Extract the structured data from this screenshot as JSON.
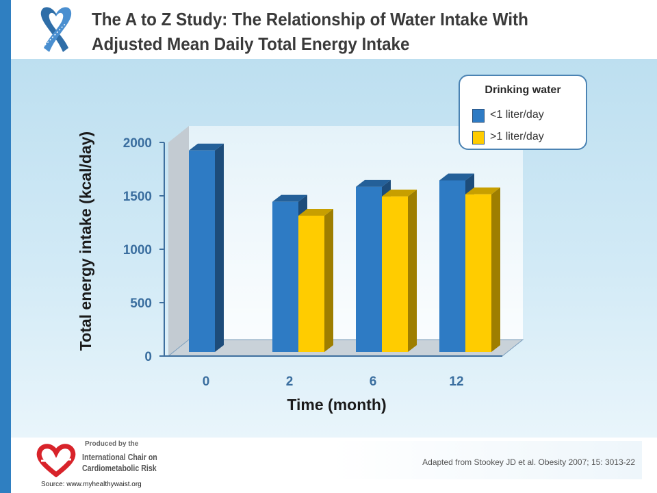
{
  "slide": {
    "title": "The A to Z Study: The Relationship of Water Intake With\nAdjusted Mean Daily Total Energy Intake",
    "reference": "Adapted from Stookey JD et al. Obesity 2007; 15: 3013-22",
    "source": "Source: www.myhealthywaist.org",
    "logo": {
      "produced": "Produced by the",
      "line1": "International Chair on",
      "line2": "Cardiometabolic Risk",
      "icon": "heart-logo-icon"
    },
    "ribbon_icon": "ribbon-icon",
    "colors": {
      "accent_blue": "#2f7fc1",
      "left_bar": "#2f7fc1"
    }
  },
  "chart_data": {
    "type": "bar",
    "categories": [
      "0",
      "2",
      "6",
      "12"
    ],
    "series": [
      {
        "name": "<1 liter/day",
        "values": [
          1950,
          1470,
          1610,
          1670
        ],
        "color": "#2e7bc4"
      },
      {
        "name": ">1 liter/day",
        "values": [
          null,
          1340,
          1520,
          1540
        ],
        "color": "#ffcc00"
      }
    ],
    "xlabel": "Time (month)",
    "ylabel": "Total energy intake (kcal/day)",
    "yticks": [
      0,
      500,
      1000,
      1500,
      2000
    ],
    "ylim": [
      0,
      2000
    ],
    "legend": {
      "title": "Drinking water",
      "placement": "top-right"
    },
    "grid": false
  }
}
